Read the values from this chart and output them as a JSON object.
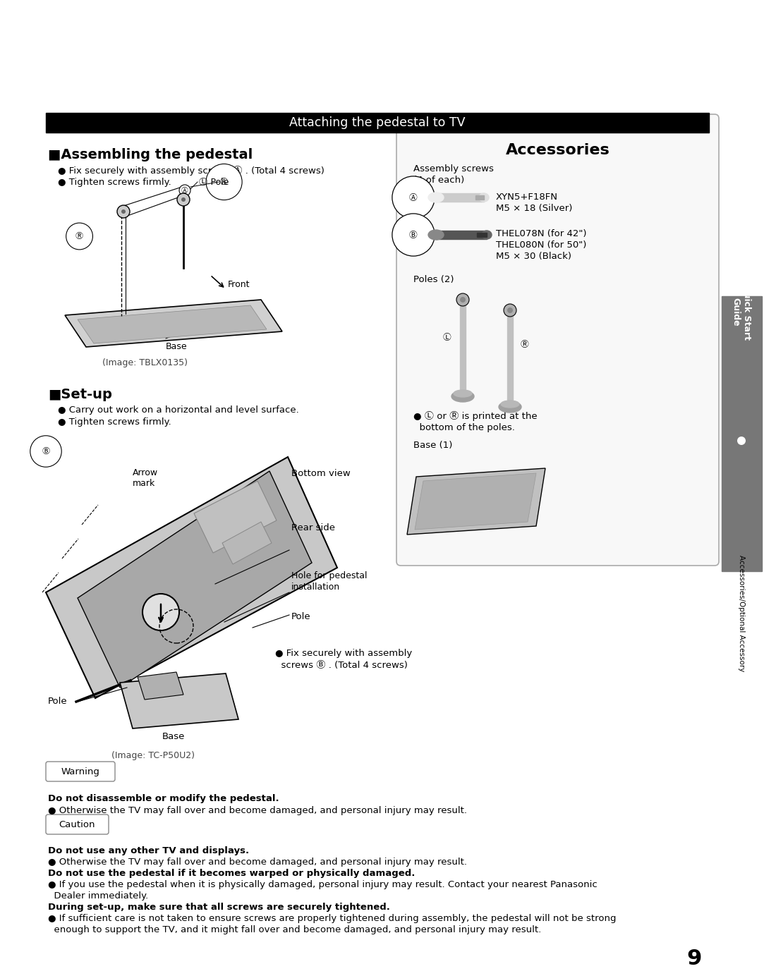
{
  "page_bg": "#ffffff",
  "title_bar_text": "Attaching the pedestal to TV",
  "title_bar_bg": "#000000",
  "title_bar_color": "#ffffff",
  "section1_title": "■Assembling the pedestal",
  "s1_bullet1": "● Fix securely with assembly screws Ⓐ . (Total 4 screws)",
  "s1_bullet2": "● Tighten screws firmly.",
  "section2_title": "■Set-up",
  "s2_bullet1": "● Carry out work on a horizontal and level surface.",
  "s2_bullet2": "● Tighten screws firmly.",
  "img1_caption": "(Image: TBLX0135)",
  "img2_caption": "(Image: TC-P50U2)",
  "label_pole_r": "Pole",
  "label_pole_r_circle": "Ⓡ",
  "label_pole_l": "Ⓛ Pole",
  "label_front": "Front",
  "label_base1": "Base",
  "label_bottom_view": "Bottom view",
  "label_rear_side": "Rear side",
  "label_arrow_mark_1": "Arrow",
  "label_arrow_mark_2": "mark",
  "label_hole": "Hole for pedestal",
  "label_hole2": "installation",
  "label_pole2": "Pole",
  "label_pole3": "Pole",
  "label_base2": "Base",
  "fix_screws_b_1": "● Fix securely with assembly",
  "fix_screws_b_2": "  screws Ⓑ . (Total 4 screws)",
  "accessories_title": "Accessories",
  "acc_screws_label1": "Assembly screws",
  "acc_screws_label2": "(4 of each)",
  "acc_a_label": "Ⓐ",
  "acc_a_name1": "XYN5+F18FN",
  "acc_a_name2": "M5 × 18 (Silver)",
  "acc_b_label": "Ⓑ",
  "acc_b_name1": "THEL078N (for 42\")",
  "acc_b_name2": "THEL080N (for 50\")",
  "acc_b_name3": "M5 × 30 (Black)",
  "acc_poles_label": "Poles (2)",
  "acc_pole_l": "Ⓛ",
  "acc_pole_r": "Ⓡ",
  "acc_poles_note1": "● Ⓛ or Ⓡ is printed at the",
  "acc_poles_note2": "  bottom of the poles.",
  "acc_base_label": "Base (1)",
  "sidebar_line1": "Quick Start",
  "sidebar_line2": "Guide",
  "sidebar_line3": "Accessories/Optional Accessory",
  "warning_label": "Warning",
  "warning_bold": "Do not disassemble or modify the pedestal.",
  "warning_bullet": "● Otherwise the TV may fall over and become damaged, and personal injury may result.",
  "caution_label": "Caution",
  "caution_bold1": "Do not use any other TV and displays.",
  "caution_b1": "● Otherwise the TV may fall over and become damaged, and personal injury may result.",
  "caution_bold2": "Do not use the pedestal if it becomes warped or physically damaged.",
  "caution_b2a": "● If you use the pedestal when it is physically damaged, personal injury may result. Contact your nearest Panasonic",
  "caution_b2b": "  Dealer immediately.",
  "caution_bold3": "During set-up, make sure that all screws are securely tightened.",
  "caution_b3a": "● If sufficient care is not taken to ensure screws are properly tightened during assembly, the pedestal will not be strong",
  "caution_b3b": "  enough to support the TV, and it might fall over and become damaged, and personal injury may result.",
  "page_number": "9"
}
